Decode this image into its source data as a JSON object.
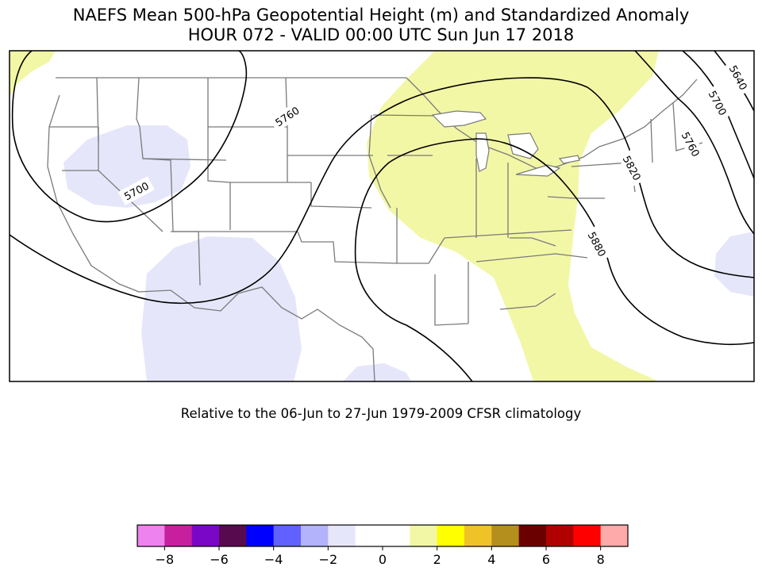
{
  "title_line1": "NAEFS Mean 500-hPa Geopotential Height (m) and Standardized Anomaly",
  "title_line2": "HOUR 072 - VALID 00:00 UTC Sun Jun 17 2018",
  "subtitle": "Relative to the 06-Jun to 27-Jun 1979-2009 CFSR climatology",
  "contour_labels": [
    "5700",
    "5760",
    "5820",
    "5880",
    "5640",
    "5700",
    "5760"
  ],
  "colors": {
    "positive_anomaly": "#f2f7a6",
    "negative_anomaly": "#e6e6fb",
    "contour": "#000000",
    "border": "#7a7a7a"
  },
  "colorbar": {
    "colors": [
      "#ee82ee",
      "#c71f9e",
      "#7a07c8",
      "#570a4e",
      "#0000ff",
      "#6161ff",
      "#b3b3fb",
      "#e6e6fb",
      "#ffffff",
      "#ffffff",
      "#f2f7a6",
      "#ffff00",
      "#efc228",
      "#b48f1e",
      "#6a0000",
      "#b00000",
      "#ff0000",
      "#ffaaaa"
    ],
    "ticks": [
      "−8",
      "−6",
      "−4",
      "−2",
      "0",
      "2",
      "4",
      "6",
      "8"
    ]
  }
}
